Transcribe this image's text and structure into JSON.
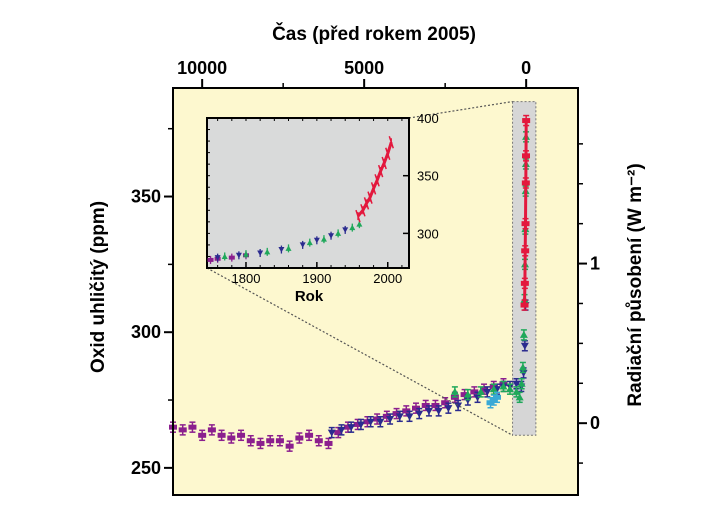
{
  "chart_data": {
    "type": "scatter",
    "top_axis": {
      "label": "Čas (před rokem 2005)",
      "ticks": [
        10000,
        5000,
        0
      ],
      "reversed": true,
      "range": [
        10900,
        -1600
      ]
    },
    "left_axis": {
      "label": "Oxid uhličitý (ppm)",
      "ticks": [
        250,
        300,
        350
      ],
      "range": [
        240,
        390
      ]
    },
    "right_axis": {
      "label": "Radiační působení (W m⁻²)",
      "ticks": [
        0,
        1
      ],
      "range_wm2": [
        -0.45,
        2.1
      ]
    },
    "colors": {
      "background": "#fdf8cf",
      "inset_background": "#d9dada",
      "series_purple": "#8b1f8e",
      "series_navy": "#2b2b8f",
      "series_green": "#1fa85a",
      "series_red": "#e3183d",
      "series_cyan": "#39a9d6"
    },
    "series": [
      {
        "color_key": "series_purple",
        "points": [
          [
            10900,
            265
          ],
          [
            10600,
            264
          ],
          [
            10300,
            265
          ],
          [
            10000,
            262
          ],
          [
            9700,
            264
          ],
          [
            9400,
            262
          ],
          [
            9100,
            261
          ],
          [
            8800,
            262
          ],
          [
            8500,
            260
          ],
          [
            8200,
            259
          ],
          [
            7900,
            260
          ],
          [
            7600,
            260
          ],
          [
            7300,
            258
          ],
          [
            7000,
            261
          ],
          [
            6700,
            262
          ],
          [
            6400,
            260
          ],
          [
            6100,
            259
          ],
          [
            5800,
            263
          ],
          [
            5500,
            265
          ],
          [
            5200,
            266
          ],
          [
            4900,
            267
          ],
          [
            4600,
            268
          ],
          [
            4300,
            269
          ],
          [
            4000,
            270
          ],
          [
            3700,
            271
          ],
          [
            3400,
            272
          ],
          [
            3100,
            273
          ],
          [
            2800,
            273
          ],
          [
            2500,
            274
          ],
          [
            2200,
            276
          ],
          [
            1900,
            277
          ],
          [
            1600,
            278
          ],
          [
            1300,
            279
          ],
          [
            1000,
            280
          ],
          [
            700,
            281
          ]
        ]
      },
      {
        "color_key": "series_navy",
        "points": [
          [
            6000,
            263
          ],
          [
            5700,
            264
          ],
          [
            5400,
            265
          ],
          [
            5100,
            266
          ],
          [
            4800,
            267
          ],
          [
            4500,
            267
          ],
          [
            4200,
            268
          ],
          [
            3900,
            269
          ],
          [
            3600,
            269
          ],
          [
            3300,
            270
          ],
          [
            3000,
            271
          ],
          [
            2700,
            271
          ],
          [
            2400,
            272
          ],
          [
            2100,
            273
          ],
          [
            1800,
            275
          ],
          [
            1500,
            276
          ],
          [
            1200,
            278
          ],
          [
            900,
            279
          ],
          [
            700,
            280
          ],
          [
            500,
            280
          ],
          [
            300,
            281
          ],
          [
            150,
            280
          ],
          [
            80,
            285
          ],
          [
            40,
            295
          ],
          [
            20,
            310
          ]
        ]
      },
      {
        "color_key": "series_green",
        "points": [
          [
            2200,
            278
          ],
          [
            1800,
            277
          ],
          [
            1400,
            278
          ],
          [
            1000,
            279
          ],
          [
            700,
            280
          ],
          [
            500,
            279
          ],
          [
            300,
            278
          ],
          [
            200,
            276
          ],
          [
            140,
            281
          ],
          [
            100,
            287
          ],
          [
            70,
            299
          ],
          [
            50,
            312
          ],
          [
            35,
            325
          ],
          [
            25,
            338
          ],
          [
            15,
            352
          ],
          [
            8,
            362
          ],
          [
            3,
            372
          ]
        ]
      },
      {
        "color_key": "series_cyan",
        "points": [
          [
            1100,
            274
          ],
          [
            1000,
            275
          ],
          [
            900,
            276
          ]
        ]
      },
      {
        "color_key": "series_red",
        "points": [
          [
            50,
            310
          ],
          [
            40,
            318
          ],
          [
            30,
            330
          ],
          [
            20,
            340
          ],
          [
            10,
            355
          ],
          [
            5,
            365
          ],
          [
            0,
            378
          ]
        ]
      }
    ],
    "inset": {
      "xlabel": "Rok",
      "x_ticks": [
        1800,
        1900,
        2000
      ],
      "y_ticks": [
        300,
        350,
        400
      ],
      "x_range": [
        1745,
        2030
      ],
      "y_range": [
        270,
        400
      ],
      "series": [
        {
          "color_key": "series_purple",
          "points": [
            [
              1750,
              277
            ],
            [
              1760,
              278
            ],
            [
              1780,
              279
            ],
            [
              1800,
              281
            ]
          ]
        },
        {
          "color_key": "series_navy",
          "points": [
            [
              1760,
              279
            ],
            [
              1790,
              281
            ],
            [
              1820,
              283
            ],
            [
              1850,
              286
            ],
            [
              1880,
              290
            ],
            [
              1900,
              294
            ],
            [
              1920,
              298
            ],
            [
              1940,
              303
            ]
          ]
        },
        {
          "color_key": "series_green",
          "points": [
            [
              1770,
              280
            ],
            [
              1800,
              282
            ],
            [
              1830,
              284
            ],
            [
              1860,
              287
            ],
            [
              1890,
              292
            ],
            [
              1910,
              295
            ],
            [
              1930,
              300
            ],
            [
              1950,
              305
            ],
            [
              1960,
              308
            ]
          ]
        },
        {
          "color_key": "series_red",
          "points": [
            [
              1958,
              315
            ],
            [
              1965,
              320
            ],
            [
              1970,
              326
            ],
            [
              1975,
              331
            ],
            [
              1980,
              339
            ],
            [
              1985,
              346
            ],
            [
              1990,
              354
            ],
            [
              1995,
              361
            ],
            [
              2000,
              369
            ],
            [
              2005,
              379
            ]
          ]
        }
      ]
    }
  }
}
